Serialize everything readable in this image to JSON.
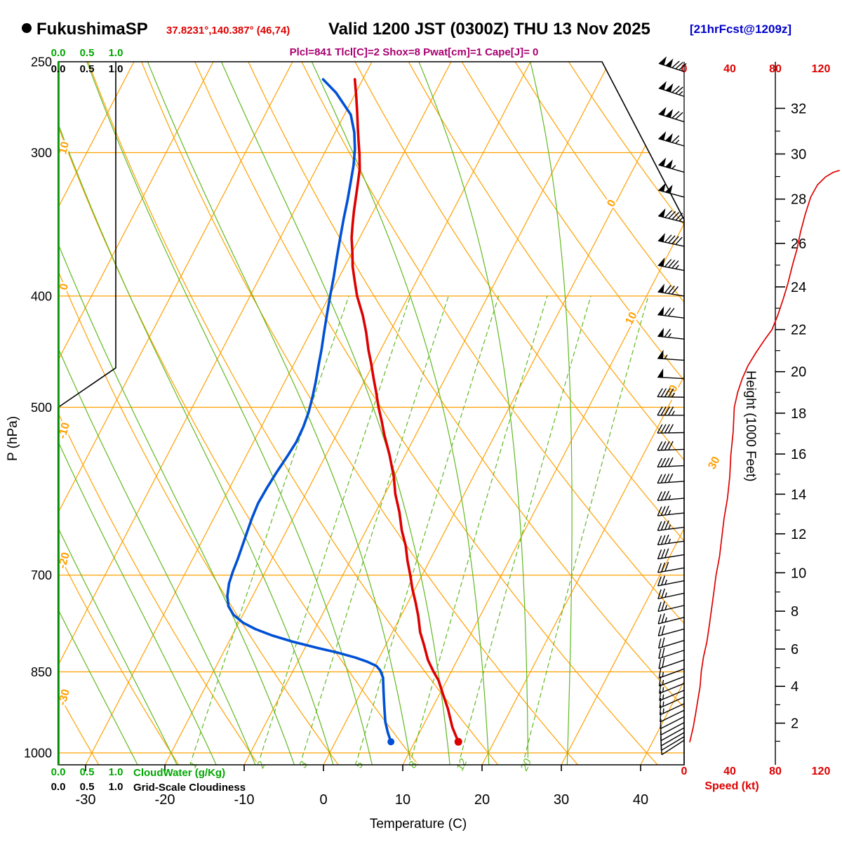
{
  "header": {
    "station": "FukushimaSP",
    "coords": "37.8231°,140.387° (46,74)",
    "valid": "Valid 1200 JST (0300Z) THU 13 Nov 2025",
    "fcst": "[21hrFcst@1209z]",
    "indices": "Plcl=841 Tlcl[C]=2 Shox=8 Pwat[cm]=1 Cape[J]= 0"
  },
  "axes": {
    "pressure_label": "P (hPa)",
    "temp_label": "Temperature (C)",
    "height_label": "Height (1000 Feet)",
    "speed_label": "Speed (kt)",
    "cloudwater_label": "CloudWater (g/Kg)",
    "cloudiness_label": "Grid-Scale Cloudiness",
    "cloud_scale_ticks": [
      "0.0",
      "0.5",
      "1.0"
    ]
  },
  "colors": {
    "grid_orange": "#FFA000",
    "grid_green": "#60B820",
    "green_text": "#00A800",
    "temperature_red": "#DD0000",
    "dewpoint_blue": "#0050D5",
    "speed_red": "#DD0000",
    "black": "#000000"
  },
  "chart_data": {
    "type": "skewt_logp_sounding",
    "title": "FukushimaSP sounding",
    "pressure_range_hPa": [
      250,
      1024
    ],
    "pressure_gridlines_hPa": [
      300,
      400,
      500,
      700,
      850,
      1000
    ],
    "pressure_axis_labels": [
      250,
      300,
      400,
      500,
      700,
      850,
      1000
    ],
    "temp_axis_labels_C": [
      -30,
      -20,
      -10,
      0,
      10,
      20,
      30,
      40
    ],
    "isotherms_C": [
      -80,
      -70,
      -60,
      -50,
      -40,
      -30,
      -20,
      -10,
      0,
      10,
      20,
      30,
      40
    ],
    "dry_adiabats_C": [
      -30,
      -20,
      -10,
      0,
      10,
      20,
      30,
      40,
      50,
      60,
      70,
      80,
      90,
      100,
      110,
      120
    ],
    "moist_adiabats_C": [
      -25,
      -20,
      -15,
      -10,
      -5,
      0,
      5,
      10,
      15,
      20,
      25,
      30
    ],
    "mixing_ratio_lines_gkg": [
      1,
      2,
      3,
      5,
      8,
      12,
      20
    ],
    "isotherm_inline_labels": [
      [
        0,
        876,
        292
      ],
      [
        10,
        904,
        456
      ],
      [
        20,
        962,
        560
      ],
      [
        30,
        1022,
        662
      ]
    ],
    "dry_adiabat_inline_labels": [
      [
        10,
        212
      ],
      [
        0,
        410
      ],
      [
        -10,
        615
      ],
      [
        -20,
        800
      ],
      [
        -30,
        995
      ]
    ],
    "height_axis_kft": [
      [
        2,
        942.1
      ],
      [
        4,
        875.1
      ],
      [
        6,
        812.0
      ],
      [
        8,
        752.6
      ],
      [
        10,
        696.8
      ],
      [
        12,
        644.4
      ],
      [
        14,
        595.2
      ],
      [
        16,
        549.1
      ],
      [
        18,
        505.9
      ],
      [
        20,
        465.5
      ],
      [
        22,
        427.8
      ],
      [
        24,
        392.7
      ],
      [
        26,
        359.9
      ],
      [
        28,
        329.3
      ],
      [
        30,
        300.8
      ],
      [
        32,
        274.5
      ]
    ],
    "speed_axis_kt": [
      0,
      40,
      80,
      120
    ],
    "temperature_profile_p_T": [
      [
        978,
        15.5
      ],
      [
        950,
        13.8
      ],
      [
        915,
        12.0
      ],
      [
        890,
        10.5
      ],
      [
        865,
        9.0
      ],
      [
        850,
        7.8
      ],
      [
        830,
        6.3
      ],
      [
        805,
        4.8
      ],
      [
        785,
        3.5
      ],
      [
        760,
        2.2
      ],
      [
        740,
        1.0
      ],
      [
        720,
        -0.3
      ],
      [
        700,
        -1.5
      ],
      [
        680,
        -2.8
      ],
      [
        660,
        -4.0
      ],
      [
        640,
        -5.5
      ],
      [
        617,
        -7.0
      ],
      [
        595,
        -8.7
      ],
      [
        575,
        -10.0
      ],
      [
        550,
        -12.0
      ],
      [
        528,
        -14.0
      ],
      [
        514,
        -15.2
      ],
      [
        500,
        -16.5
      ],
      [
        485,
        -17.8
      ],
      [
        472,
        -19.0
      ],
      [
        458,
        -20.3
      ],
      [
        446,
        -21.5
      ],
      [
        430,
        -23.0
      ],
      [
        416,
        -24.5
      ],
      [
        400,
        -26.5
      ],
      [
        388,
        -27.8
      ],
      [
        377,
        -29.0
      ],
      [
        366,
        -30.0
      ],
      [
        356,
        -31.0
      ],
      [
        346,
        -31.8
      ],
      [
        337,
        -32.5
      ],
      [
        323,
        -33.5
      ],
      [
        310,
        -34.5
      ],
      [
        301,
        -35.5
      ],
      [
        293,
        -36.5
      ],
      [
        285,
        -37.5
      ],
      [
        277,
        -38.5
      ],
      [
        268,
        -39.7
      ],
      [
        259,
        -41.0
      ]
    ],
    "dewpoint_profile_p_Td": [
      [
        978,
        7.0
      ],
      [
        960,
        6.0
      ],
      [
        940,
        5.0
      ],
      [
        920,
        4.2
      ],
      [
        900,
        3.4
      ],
      [
        880,
        2.6
      ],
      [
        860,
        1.8
      ],
      [
        848,
        1.0
      ],
      [
        840,
        0.2
      ],
      [
        833,
        -1.2
      ],
      [
        826,
        -3.0
      ],
      [
        818,
        -5.5
      ],
      [
        810,
        -8.5
      ],
      [
        800,
        -12.0
      ],
      [
        790,
        -15.0
      ],
      [
        780,
        -17.5
      ],
      [
        770,
        -19.5
      ],
      [
        758,
        -21.2
      ],
      [
        745,
        -22.4
      ],
      [
        730,
        -23.2
      ],
      [
        712,
        -23.8
      ],
      [
        695,
        -24.1
      ],
      [
        678,
        -24.3
      ],
      [
        660,
        -24.6
      ],
      [
        642,
        -24.9
      ],
      [
        624,
        -25.2
      ],
      [
        606,
        -25.4
      ],
      [
        588,
        -25.3
      ],
      [
        570,
        -25.1
      ],
      [
        552,
        -24.8
      ],
      [
        536,
        -24.6
      ],
      [
        520,
        -24.7
      ],
      [
        505,
        -25.0
      ],
      [
        490,
        -25.5
      ],
      [
        475,
        -26.1
      ],
      [
        460,
        -26.8
      ],
      [
        445,
        -27.5
      ],
      [
        430,
        -28.3
      ],
      [
        415,
        -29.1
      ],
      [
        400,
        -29.9
      ],
      [
        385,
        -30.7
      ],
      [
        370,
        -31.6
      ],
      [
        355,
        -32.5
      ],
      [
        342,
        -33.3
      ],
      [
        330,
        -34.0
      ],
      [
        318,
        -34.8
      ],
      [
        308,
        -35.5
      ],
      [
        298,
        -36.4
      ],
      [
        288,
        -37.6
      ],
      [
        278,
        -39.2
      ],
      [
        266,
        -42.5
      ],
      [
        259,
        -45.0
      ]
    ],
    "surface_points": {
      "temperature": [
        978,
        15.5
      ],
      "dewpoint": [
        978,
        7.0
      ]
    },
    "wind_barbs_p_dir_kt": [
      [
        255,
        288,
        132
      ],
      [
        268,
        288,
        127
      ],
      [
        282,
        287,
        120
      ],
      [
        296,
        286,
        113
      ],
      [
        312,
        286,
        106
      ],
      [
        328,
        285,
        100
      ],
      [
        345,
        284,
        96
      ],
      [
        362,
        282,
        91
      ],
      [
        380,
        281,
        86
      ],
      [
        400,
        279,
        80
      ],
      [
        418,
        277,
        72
      ],
      [
        436,
        276,
        64
      ],
      [
        455,
        274,
        57
      ],
      [
        472,
        273,
        51
      ],
      [
        490,
        271,
        46
      ],
      [
        508,
        270,
        44
      ],
      [
        526,
        269,
        42
      ],
      [
        544,
        268,
        41
      ],
      [
        562,
        267,
        40
      ],
      [
        580,
        266,
        39
      ],
      [
        600,
        265,
        37
      ],
      [
        618,
        264,
        35
      ],
      [
        636,
        263,
        34
      ],
      [
        654,
        262,
        33
      ],
      [
        672,
        261,
        31
      ],
      [
        690,
        260,
        29
      ],
      [
        708,
        259,
        27
      ],
      [
        726,
        258,
        26
      ],
      [
        744,
        257,
        25
      ],
      [
        762,
        256,
        23
      ],
      [
        780,
        255,
        22
      ],
      [
        798,
        253,
        20
      ],
      [
        814,
        252,
        19
      ],
      [
        830,
        251,
        18
      ],
      [
        845,
        250,
        17
      ],
      [
        858,
        249,
        16
      ],
      [
        870,
        248,
        15
      ],
      [
        882,
        247,
        15
      ],
      [
        894,
        246,
        14
      ],
      [
        906,
        245,
        13
      ],
      [
        918,
        244,
        12
      ],
      [
        930,
        243,
        11
      ],
      [
        941,
        242,
        10
      ],
      [
        951,
        241,
        10
      ],
      [
        960,
        240,
        9
      ],
      [
        968,
        239,
        8
      ],
      [
        975,
        237,
        8
      ]
    ],
    "wind_speed_profile_p_kt": [
      [
        978,
        5
      ],
      [
        950,
        8
      ],
      [
        925,
        10
      ],
      [
        900,
        12
      ],
      [
        875,
        14
      ],
      [
        850,
        15
      ],
      [
        825,
        17
      ],
      [
        800,
        20
      ],
      [
        775,
        22
      ],
      [
        750,
        24
      ],
      [
        725,
        26
      ],
      [
        700,
        28
      ],
      [
        675,
        31
      ],
      [
        650,
        33
      ],
      [
        625,
        35
      ],
      [
        600,
        38
      ],
      [
        575,
        40
      ],
      [
        550,
        41
      ],
      [
        525,
        43
      ],
      [
        500,
        44
      ],
      [
        485,
        47
      ],
      [
        472,
        51
      ],
      [
        460,
        56
      ],
      [
        448,
        63
      ],
      [
        436,
        71
      ],
      [
        428,
        77
      ],
      [
        416,
        82
      ],
      [
        402,
        87
      ],
      [
        390,
        91
      ],
      [
        376,
        95
      ],
      [
        364,
        99
      ],
      [
        352,
        102
      ],
      [
        340,
        106
      ],
      [
        328,
        111
      ],
      [
        320,
        117
      ],
      [
        315,
        124
      ],
      [
        312,
        131
      ],
      [
        311,
        136
      ]
    ],
    "grid_scale_cloudiness_p_frac": [
      [
        250,
        1.0
      ],
      [
        462,
        1.0
      ],
      [
        500,
        0.0
      ],
      [
        1024,
        0.0
      ]
    ],
    "cloud_water_p_gkg": [
      [
        250,
        0.0
      ],
      [
        1024,
        0.0
      ]
    ]
  }
}
